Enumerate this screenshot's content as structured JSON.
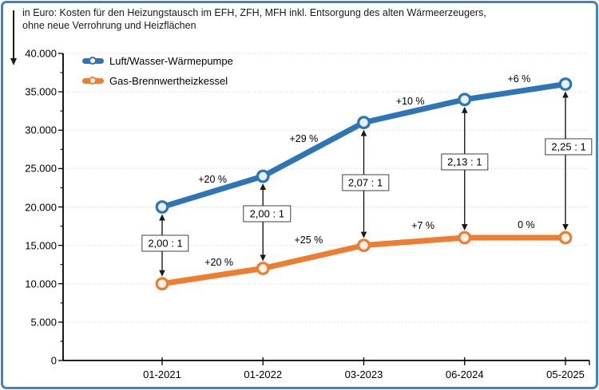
{
  "title": {
    "line1": "in Euro: Kosten für den Heizungstausch im EFH, ZFH, MFH inkl. Entsorgung des alten Wärmeerzeugers,",
    "line2": "ohne neue Verrohrung und Heizflächen"
  },
  "chart_data": {
    "type": "line",
    "categories": [
      "01-2021",
      "01-2022",
      "03-2023",
      "06-2024",
      "05-2025"
    ],
    "series": [
      {
        "name": "Luft/Wasser-Wärmepumpe",
        "color": "#2E75B6",
        "values": [
          20000,
          24000,
          31000,
          34000,
          36000
        ],
        "pct_changes": [
          "+20 %",
          "+29 %",
          "+10 %",
          "+6 %"
        ]
      },
      {
        "name": "Gas-Brennwertheizkessel",
        "color": "#ED7D31",
        "values": [
          10000,
          12000,
          15000,
          16000,
          16000
        ],
        "pct_changes": [
          "+20 %",
          "+25 %",
          "+7 %",
          "0 %"
        ]
      }
    ],
    "ratio_labels": [
      "2,00 : 1",
      "2,00 : 1",
      "2,07 : 1",
      "2,13 : 1",
      "2,25 : 1"
    ],
    "y_axis": {
      "min": 0,
      "max": 40000,
      "major_step": 5000,
      "minor_step": 2500,
      "tick_labels": [
        "0",
        "5.000",
        "10.000",
        "15.000",
        "20.000",
        "25.000",
        "30.000",
        "35.000",
        "40.000"
      ]
    },
    "grid": true,
    "legend_position": "top-left"
  },
  "colors": {
    "frame": "#4284B5",
    "grid": "#D8D8D8",
    "axis": "#000000",
    "arrow": "#1a1a1a",
    "blue_marker_fill": "#E7F0F9",
    "orange_marker_fill": "#FDF2E8"
  }
}
